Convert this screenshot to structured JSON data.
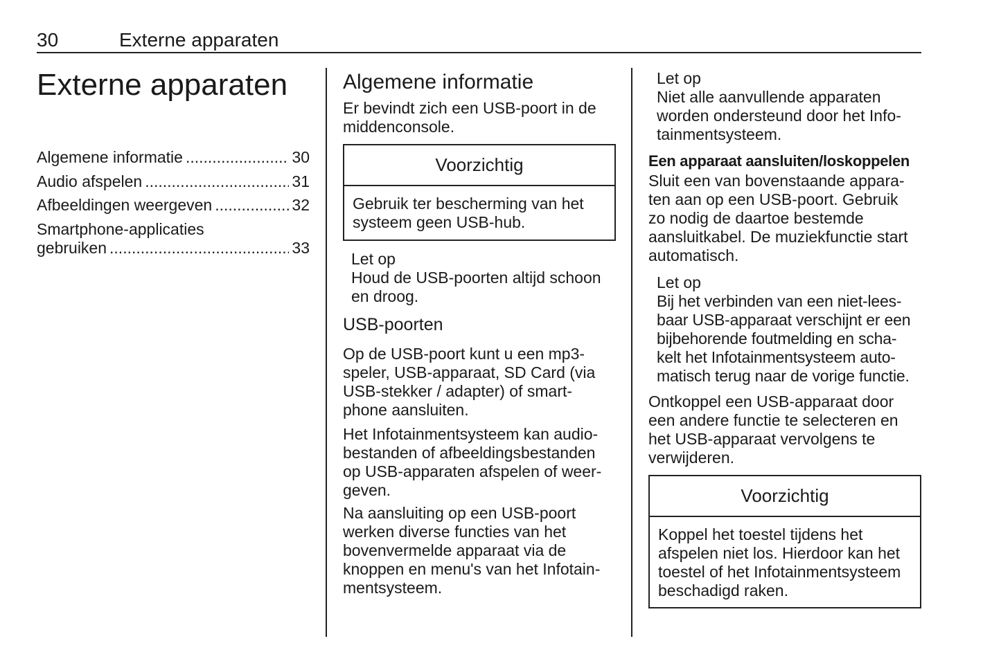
{
  "header": {
    "page_number": "30",
    "running_title": "Externe apparaten"
  },
  "column1": {
    "title": "Externe apparaten",
    "toc": [
      {
        "label": "Algemene informatie",
        "page": "30"
      },
      {
        "label": "Audio afspelen",
        "page": "31"
      },
      {
        "label": "Afbeeldingen weergeven",
        "page": "32"
      },
      {
        "label_line1": "Smartphone-applicaties",
        "label": "gebruiken",
        "page": "33"
      }
    ]
  },
  "column2": {
    "heading": "Algemene informatie",
    "intro": "Er bevindt zich een USB-poort in de\nmiddenconsole.",
    "caution": {
      "title": "Voorzichtig",
      "text": "Gebruik ter bescherming van het\nsysteem geen USB-hub."
    },
    "note": {
      "title": "Let op",
      "text": "Houd de USB-poorten altijd schoon\nen droog."
    },
    "subheading": "USB-poorten",
    "paragraphs": [
      "Op de USB-poort kunt u een mp3-\nspeler, USB-apparaat, SD Card (via\nUSB-stekker / adapter) of smart-\nphone aansluiten.",
      "Het Infotainmentsysteem kan audio-\nbestanden of afbeeldingsbestanden\nop USB-apparaten afspelen of weer-\ngeven.",
      "Na aansluiting op een USB-poort\nwerken diverse functies van het\nbovenvermelde apparaat via de\nknoppen en menu's van het Infotain-\nmentsysteem."
    ]
  },
  "column3": {
    "note1": {
      "title": "Let op",
      "text": "Niet alle aanvullende apparaten\nworden ondersteund door het Info-\ntainmentsysteem."
    },
    "subheading": "Een apparaat aansluiten/loskoppelen",
    "para1": "Sluit een van bovenstaande appara-\nten aan op een USB-poort. Gebruik\nzo nodig de daartoe bestemde\naansluitkabel. De muziekfunctie start\nautomatisch.",
    "note2": {
      "title": "Let op",
      "text": "Bij het verbinden van een niet-lees-\nbaar USB-apparaat verschijnt er een\nbijbehorende foutmelding en scha-\nkelt het Infotainmentsysteem auto-\nmatisch terug naar de vorige functie."
    },
    "para2": "Ontkoppel een USB-apparaat door\neen andere functie te selecteren en\nhet USB-apparaat vervolgens te\nverwijderen.",
    "caution": {
      "title": "Voorzichtig",
      "text": "Koppel het toestel tijdens het\nafspelen niet los. Hierdoor kan het\ntoestel of het Infotainmentsysteem\nbeschadigd raken."
    }
  }
}
